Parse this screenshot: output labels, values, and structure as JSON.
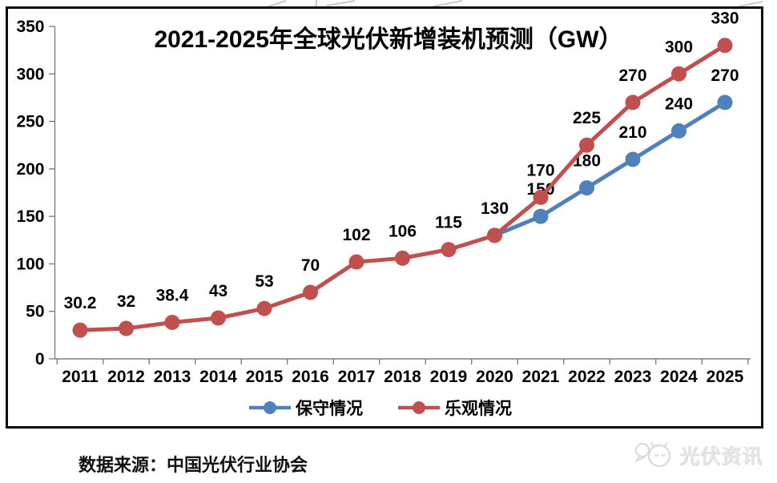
{
  "chart_data": {
    "type": "line",
    "title": "2021-2025年全球光伏新增装机预测（GW）",
    "categories": [
      "2011",
      "2012",
      "2013",
      "2014",
      "2015",
      "2016",
      "2017",
      "2018",
      "2019",
      "2020",
      "2021",
      "2022",
      "2023",
      "2024",
      "2025"
    ],
    "yticks": [
      "0",
      "50",
      "100",
      "150",
      "200",
      "250",
      "300",
      "350"
    ],
    "ylim": [
      0,
      350
    ],
    "grid": false,
    "legend_position": "bottom",
    "series": [
      {
        "name": "保守情况",
        "key": "conservative",
        "color": "#4f81bd",
        "values": [
          null,
          null,
          null,
          null,
          null,
          null,
          null,
          null,
          null,
          130,
          150,
          180,
          210,
          240,
          270
        ],
        "labels": [
          "",
          "",
          "",
          "",
          "",
          "",
          "",
          "",
          "",
          "",
          "150",
          "180",
          "210",
          "240",
          "270"
        ]
      },
      {
        "name": "乐观情况",
        "key": "optimistic",
        "color": "#c0504d",
        "values": [
          30.2,
          32,
          38.4,
          43,
          53,
          70,
          102,
          106,
          115,
          130,
          170,
          225,
          270,
          300,
          330
        ],
        "labels": [
          "30.2",
          "32",
          "38.4",
          "43",
          "53",
          "70",
          "102",
          "106",
          "115",
          "130",
          "170",
          "225",
          "270",
          "300",
          "330"
        ]
      }
    ]
  },
  "legend": {
    "items": [
      {
        "label": "保守情况",
        "color": "#4f81bd"
      },
      {
        "label": "乐观情况",
        "color": "#c0504d"
      }
    ]
  },
  "footer": {
    "source": "数据来源：中国光伏行业协会",
    "watermark": "光伏资讯"
  },
  "style": {
    "axis_color": "#7f7f7f",
    "label_color": "#000000"
  }
}
